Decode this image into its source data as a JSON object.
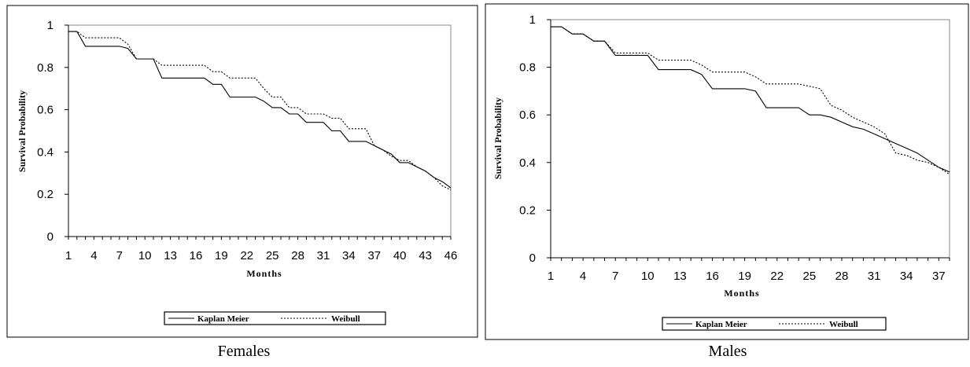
{
  "chart_data": [
    {
      "type": "line",
      "caption": "Females",
      "xlabel": "Months",
      "ylabel": "Survival Probability",
      "xlim": [
        1,
        46
      ],
      "ylim": [
        0,
        1
      ],
      "x_ticks": [
        1,
        4,
        7,
        10,
        13,
        16,
        19,
        22,
        25,
        28,
        31,
        34,
        37,
        40,
        43,
        46
      ],
      "y_ticks": [
        0,
        0.2,
        0.4,
        0.6,
        0.8,
        1
      ],
      "y_tick_labels": [
        "0",
        "0.2",
        "0.4",
        "0.6",
        "0.8",
        "1"
      ],
      "grid": false,
      "legend_position": "bottom",
      "series": [
        {
          "name": "Kaplan Meier",
          "style": "solid",
          "points": [
            [
              1,
              0.97
            ],
            [
              2,
              0.97
            ],
            [
              3,
              0.9
            ],
            [
              4,
              0.9
            ],
            [
              5,
              0.9
            ],
            [
              6,
              0.9
            ],
            [
              7,
              0.9
            ],
            [
              8,
              0.89
            ],
            [
              9,
              0.84
            ],
            [
              10,
              0.84
            ],
            [
              11,
              0.84
            ],
            [
              12,
              0.75
            ],
            [
              13,
              0.75
            ],
            [
              14,
              0.75
            ],
            [
              15,
              0.75
            ],
            [
              16,
              0.75
            ],
            [
              17,
              0.75
            ],
            [
              18,
              0.72
            ],
            [
              19,
              0.72
            ],
            [
              20,
              0.66
            ],
            [
              21,
              0.66
            ],
            [
              22,
              0.66
            ],
            [
              23,
              0.66
            ],
            [
              24,
              0.64
            ],
            [
              25,
              0.61
            ],
            [
              26,
              0.61
            ],
            [
              27,
              0.58
            ],
            [
              28,
              0.58
            ],
            [
              29,
              0.54
            ],
            [
              30,
              0.54
            ],
            [
              31,
              0.54
            ],
            [
              32,
              0.5
            ],
            [
              33,
              0.5
            ],
            [
              34,
              0.45
            ],
            [
              35,
              0.45
            ],
            [
              36,
              0.45
            ],
            [
              37,
              0.43
            ],
            [
              38,
              0.41
            ],
            [
              39,
              0.39
            ],
            [
              40,
              0.35
            ],
            [
              41,
              0.35
            ],
            [
              42,
              0.33
            ],
            [
              43,
              0.31
            ],
            [
              44,
              0.28
            ],
            [
              45,
              0.26
            ],
            [
              46,
              0.23
            ]
          ]
        },
        {
          "name": "Weibull",
          "style": "dotted",
          "points": [
            [
              1,
              0.97
            ],
            [
              2,
              0.97
            ],
            [
              3,
              0.94
            ],
            [
              4,
              0.94
            ],
            [
              5,
              0.94
            ],
            [
              6,
              0.94
            ],
            [
              7,
              0.94
            ],
            [
              8,
              0.91
            ],
            [
              9,
              0.84
            ],
            [
              10,
              0.84
            ],
            [
              11,
              0.84
            ],
            [
              12,
              0.81
            ],
            [
              13,
              0.81
            ],
            [
              14,
              0.81
            ],
            [
              15,
              0.81
            ],
            [
              16,
              0.81
            ],
            [
              17,
              0.81
            ],
            [
              18,
              0.78
            ],
            [
              19,
              0.78
            ],
            [
              20,
              0.75
            ],
            [
              21,
              0.75
            ],
            [
              22,
              0.75
            ],
            [
              23,
              0.75
            ],
            [
              24,
              0.7
            ],
            [
              25,
              0.66
            ],
            [
              26,
              0.66
            ],
            [
              27,
              0.61
            ],
            [
              28,
              0.61
            ],
            [
              29,
              0.58
            ],
            [
              30,
              0.58
            ],
            [
              31,
              0.58
            ],
            [
              32,
              0.56
            ],
            [
              33,
              0.56
            ],
            [
              34,
              0.51
            ],
            [
              35,
              0.51
            ],
            [
              36,
              0.51
            ],
            [
              37,
              0.43
            ],
            [
              38,
              0.41
            ],
            [
              39,
              0.38
            ],
            [
              40,
              0.36
            ],
            [
              41,
              0.36
            ],
            [
              42,
              0.33
            ],
            [
              43,
              0.31
            ],
            [
              44,
              0.28
            ],
            [
              45,
              0.24
            ],
            [
              46,
              0.22
            ]
          ]
        }
      ]
    },
    {
      "type": "line",
      "caption": "Males",
      "xlabel": "Months",
      "ylabel": "Survival Probability",
      "xlim": [
        1,
        38
      ],
      "ylim": [
        0,
        1
      ],
      "x_ticks": [
        1,
        4,
        7,
        10,
        13,
        16,
        19,
        22,
        25,
        28,
        31,
        34,
        37
      ],
      "y_ticks": [
        0,
        0.2,
        0.4,
        0.6,
        0.8,
        1
      ],
      "y_tick_labels": [
        "0",
        "0.2",
        "0.4",
        "0.6",
        "0.8",
        "1"
      ],
      "grid": false,
      "legend_position": "bottom",
      "series": [
        {
          "name": "Kaplan Meier",
          "style": "solid",
          "points": [
            [
              1,
              0.97
            ],
            [
              2,
              0.97
            ],
            [
              3,
              0.94
            ],
            [
              4,
              0.94
            ],
            [
              5,
              0.91
            ],
            [
              6,
              0.91
            ],
            [
              7,
              0.85
            ],
            [
              8,
              0.85
            ],
            [
              9,
              0.85
            ],
            [
              10,
              0.85
            ],
            [
              11,
              0.79
            ],
            [
              12,
              0.79
            ],
            [
              13,
              0.79
            ],
            [
              14,
              0.79
            ],
            [
              15,
              0.77
            ],
            [
              16,
              0.71
            ],
            [
              17,
              0.71
            ],
            [
              18,
              0.71
            ],
            [
              19,
              0.71
            ],
            [
              20,
              0.7
            ],
            [
              21,
              0.63
            ],
            [
              22,
              0.63
            ],
            [
              23,
              0.63
            ],
            [
              24,
              0.63
            ],
            [
              25,
              0.6
            ],
            [
              26,
              0.6
            ],
            [
              27,
              0.59
            ],
            [
              28,
              0.57
            ],
            [
              29,
              0.55
            ],
            [
              30,
              0.54
            ],
            [
              31,
              0.52
            ],
            [
              32,
              0.5
            ],
            [
              33,
              0.48
            ],
            [
              34,
              0.46
            ],
            [
              35,
              0.44
            ],
            [
              36,
              0.41
            ],
            [
              37,
              0.38
            ],
            [
              38,
              0.36
            ]
          ]
        },
        {
          "name": "Weibull",
          "style": "dotted",
          "points": [
            [
              1,
              0.97
            ],
            [
              2,
              0.97
            ],
            [
              3,
              0.94
            ],
            [
              4,
              0.94
            ],
            [
              5,
              0.91
            ],
            [
              6,
              0.91
            ],
            [
              7,
              0.86
            ],
            [
              8,
              0.86
            ],
            [
              9,
              0.86
            ],
            [
              10,
              0.86
            ],
            [
              11,
              0.83
            ],
            [
              12,
              0.83
            ],
            [
              13,
              0.83
            ],
            [
              14,
              0.83
            ],
            [
              15,
              0.81
            ],
            [
              16,
              0.78
            ],
            [
              17,
              0.78
            ],
            [
              18,
              0.78
            ],
            [
              19,
              0.78
            ],
            [
              20,
              0.76
            ],
            [
              21,
              0.73
            ],
            [
              22,
              0.73
            ],
            [
              23,
              0.73
            ],
            [
              24,
              0.73
            ],
            [
              25,
              0.72
            ],
            [
              26,
              0.71
            ],
            [
              27,
              0.64
            ],
            [
              28,
              0.62
            ],
            [
              29,
              0.59
            ],
            [
              30,
              0.57
            ],
            [
              31,
              0.55
            ],
            [
              32,
              0.52
            ],
            [
              33,
              0.44
            ],
            [
              34,
              0.43
            ],
            [
              35,
              0.41
            ],
            [
              36,
              0.4
            ],
            [
              37,
              0.38
            ],
            [
              38,
              0.35
            ]
          ]
        }
      ]
    }
  ]
}
